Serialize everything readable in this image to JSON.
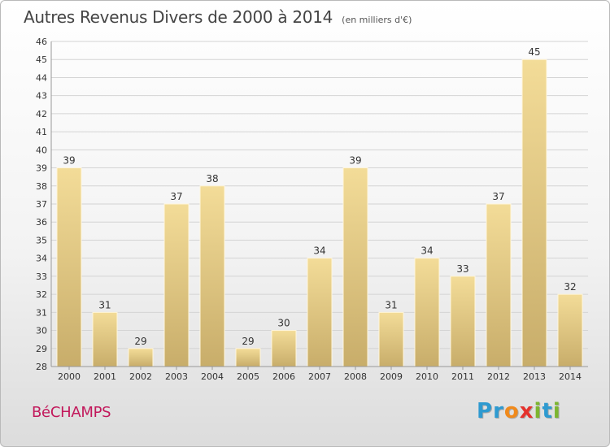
{
  "chart_data": {
    "type": "bar",
    "title": "Autres Revenus Divers de 2000 à 2014",
    "subtitle": "(en milliers d'€)",
    "xlabel": "",
    "ylabel": "",
    "categories": [
      "2000",
      "2001",
      "2002",
      "2003",
      "2004",
      "2005",
      "2006",
      "2007",
      "2008",
      "2009",
      "2010",
      "2011",
      "2012",
      "2013",
      "2014"
    ],
    "values": [
      39,
      31,
      29,
      37,
      38,
      29,
      30,
      34,
      39,
      31,
      34,
      33,
      37,
      45,
      32
    ],
    "ylim": [
      28,
      46
    ],
    "yticks": [
      28,
      29,
      30,
      31,
      32,
      33,
      34,
      35,
      36,
      37,
      38,
      39,
      40,
      41,
      42,
      43,
      44,
      45,
      46
    ],
    "grid": true,
    "bar_color_top": "#f3dc98",
    "bar_color_bottom": "#c8ad6a"
  },
  "footer": {
    "commune": "BéCHAMPS",
    "commune_color": "#c2185b",
    "logo_letters": [
      {
        "ch": "P",
        "color": "#2e9ad0"
      },
      {
        "ch": "r",
        "color": "#2e9ad0"
      },
      {
        "ch": "o",
        "color": "#f08a1c"
      },
      {
        "ch": "x",
        "color": "#e5322d"
      },
      {
        "ch": "i",
        "color": "#7cb52f"
      },
      {
        "ch": "t",
        "color": "#2e9ad0"
      },
      {
        "ch": "i",
        "color": "#7cb52f"
      }
    ]
  }
}
